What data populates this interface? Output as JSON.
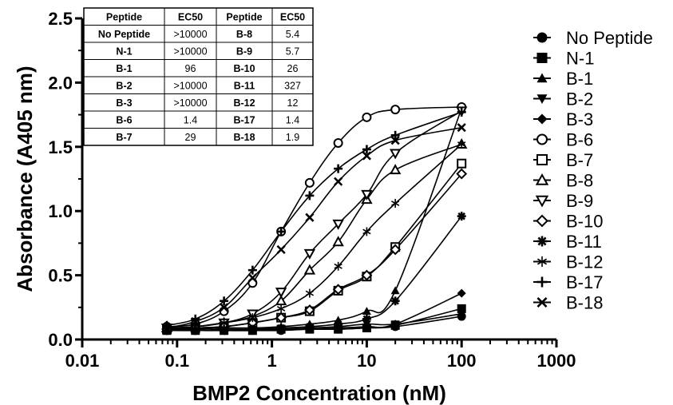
{
  "chart_data": {
    "type": "scatter",
    "xlabel": "BMP2 Concentration (nM)",
    "ylabel": "Absorbance (A405 nm)",
    "xscale": "log",
    "xlim": [
      0.01,
      1000
    ],
    "ylim": [
      0.0,
      2.5
    ],
    "x_ticks": [
      "0.01",
      "0.1",
      "1",
      "10",
      "100",
      "1000"
    ],
    "y_ticks": [
      "0.0",
      "0.5",
      "1.0",
      "1.5",
      "2.0",
      "2.5"
    ],
    "legend_position": "right",
    "x": [
      0.078,
      0.156,
      0.3125,
      0.625,
      1.25,
      2.5,
      5,
      10,
      20,
      100
    ],
    "series": [
      {
        "name": "No Peptide",
        "marker": "circle-filled",
        "values": [
          0.07,
          0.07,
          0.07,
          0.07,
          0.07,
          0.08,
          0.08,
          0.09,
          0.1,
          0.18
        ]
      },
      {
        "name": "N-1",
        "marker": "square-filled",
        "values": [
          0.07,
          0.07,
          0.07,
          0.07,
          0.08,
          0.08,
          0.08,
          0.09,
          0.11,
          0.24
        ]
      },
      {
        "name": "B-1",
        "marker": "triangle-up-filled",
        "values": [
          0.08,
          0.08,
          0.09,
          0.09,
          0.1,
          0.12,
          0.15,
          0.22,
          0.38,
          1.8
        ]
      },
      {
        "name": "B-2",
        "marker": "triangle-down-filled",
        "values": [
          0.07,
          0.07,
          0.07,
          0.08,
          0.08,
          0.09,
          0.1,
          0.12,
          0.12,
          0.2
        ]
      },
      {
        "name": "B-3",
        "marker": "diamond-filled",
        "values": [
          0.07,
          0.07,
          0.07,
          0.07,
          0.08,
          0.08,
          0.09,
          0.1,
          0.12,
          0.36
        ]
      },
      {
        "name": "B-6",
        "marker": "circle-open",
        "values": [
          0.1,
          0.12,
          0.22,
          0.44,
          0.84,
          1.22,
          1.53,
          1.73,
          1.79,
          1.81
        ]
      },
      {
        "name": "B-7",
        "marker": "square-open",
        "values": [
          0.08,
          0.09,
          0.1,
          0.13,
          0.17,
          0.22,
          0.38,
          0.49,
          0.72,
          1.37
        ]
      },
      {
        "name": "B-8",
        "marker": "triangle-up-open",
        "values": [
          0.09,
          0.1,
          0.13,
          0.18,
          0.3,
          0.54,
          0.76,
          1.09,
          1.32,
          1.52
        ]
      },
      {
        "name": "B-9",
        "marker": "triangle-down-open",
        "values": [
          0.09,
          0.1,
          0.13,
          0.2,
          0.37,
          0.67,
          0.9,
          1.13,
          1.45,
          1.78
        ]
      },
      {
        "name": "B-10",
        "marker": "diamond-open",
        "values": [
          0.08,
          0.09,
          0.1,
          0.13,
          0.17,
          0.23,
          0.39,
          0.5,
          0.7,
          1.29
        ]
      },
      {
        "name": "B-11",
        "marker": "asterisk",
        "values": [
          0.07,
          0.07,
          0.08,
          0.08,
          0.09,
          0.1,
          0.12,
          0.16,
          0.3,
          0.96
        ]
      },
      {
        "name": "B-12",
        "marker": "star",
        "values": [
          0.08,
          0.1,
          0.13,
          0.17,
          0.24,
          0.36,
          0.57,
          0.84,
          1.06,
          1.52
        ]
      },
      {
        "name": "B-17",
        "marker": "plus",
        "values": [
          0.11,
          0.16,
          0.3,
          0.54,
          0.84,
          1.12,
          1.33,
          1.48,
          1.59,
          1.77
        ]
      },
      {
        "name": "B-18",
        "marker": "cross",
        "values": [
          0.09,
          0.14,
          0.25,
          0.48,
          0.7,
          0.95,
          1.23,
          1.43,
          1.55,
          1.65
        ]
      }
    ],
    "table": {
      "headers": [
        "Peptide",
        "EC50",
        "Peptide",
        "EC50"
      ],
      "rows": [
        [
          "No Peptide",
          ">10000",
          "B-8",
          "5.4"
        ],
        [
          "N-1",
          ">10000",
          "B-9",
          "5.7"
        ],
        [
          "B-1",
          "96",
          "B-10",
          "26"
        ],
        [
          "B-2",
          ">10000",
          "B-11",
          "327"
        ],
        [
          "B-3",
          ">10000",
          "B-12",
          "12"
        ],
        [
          "B-6",
          "1.4",
          "B-17",
          "1.4"
        ],
        [
          "B-7",
          "29",
          "B-18",
          "1.9"
        ]
      ]
    }
  }
}
